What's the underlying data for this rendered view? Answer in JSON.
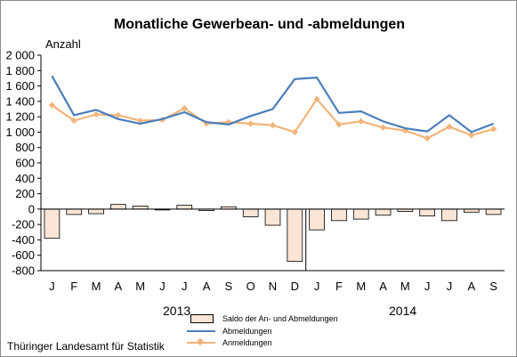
{
  "chart_data": {
    "type": "bar+line",
    "title": "Monatliche Gewerbean- und -abmeldungen",
    "ylabel": "Anzahl",
    "ylim": [
      -800,
      2000
    ],
    "yticks": [
      2000,
      1800,
      1600,
      1400,
      1200,
      1000,
      800,
      600,
      400,
      200,
      0,
      -200,
      -400,
      -600,
      -800
    ],
    "ytick_labels": [
      "2 000",
      "1 800",
      "1 600",
      "1 400",
      "1 200",
      "1 000",
      "800",
      "600",
      "400",
      "200",
      "0",
      "-200",
      "-400",
      "-600",
      "-800"
    ],
    "categories": [
      "J",
      "F",
      "M",
      "A",
      "M",
      "J",
      "J",
      "A",
      "S",
      "O",
      "N",
      "D",
      "J",
      "F",
      "M",
      "A",
      "M",
      "J",
      "J",
      "A",
      "S"
    ],
    "years": [
      {
        "label": "2013"
      },
      {
        "label": "2014"
      }
    ],
    "series": [
      {
        "name": "Saldo der An- und Abmeldungen",
        "type": "bar",
        "color": "#fbe5d6",
        "values": [
          -380,
          -70,
          -60,
          60,
          40,
          -10,
          50,
          -20,
          30,
          -100,
          -210,
          -680,
          -270,
          -150,
          -130,
          -80,
          -30,
          -90,
          -150,
          -40,
          -70
        ]
      },
      {
        "name": "Abmeldungen",
        "type": "line",
        "color": "#4a7ebb",
        "values": [
          1730,
          1220,
          1290,
          1170,
          1110,
          1170,
          1260,
          1130,
          1100,
          1210,
          1300,
          1690,
          1710,
          1250,
          1270,
          1140,
          1050,
          1010,
          1220,
          1000,
          1110
        ]
      },
      {
        "name": "Anmeldungen",
        "type": "line",
        "color": "#f2b47a",
        "values": [
          1350,
          1150,
          1230,
          1220,
          1150,
          1160,
          1310,
          1110,
          1130,
          1110,
          1090,
          1000,
          1430,
          1100,
          1140,
          1060,
          1020,
          920,
          1070,
          960,
          1040
        ]
      }
    ],
    "legend": "bottom-center",
    "grid": false
  },
  "source": "Thüringer Landesamt für Statistik"
}
